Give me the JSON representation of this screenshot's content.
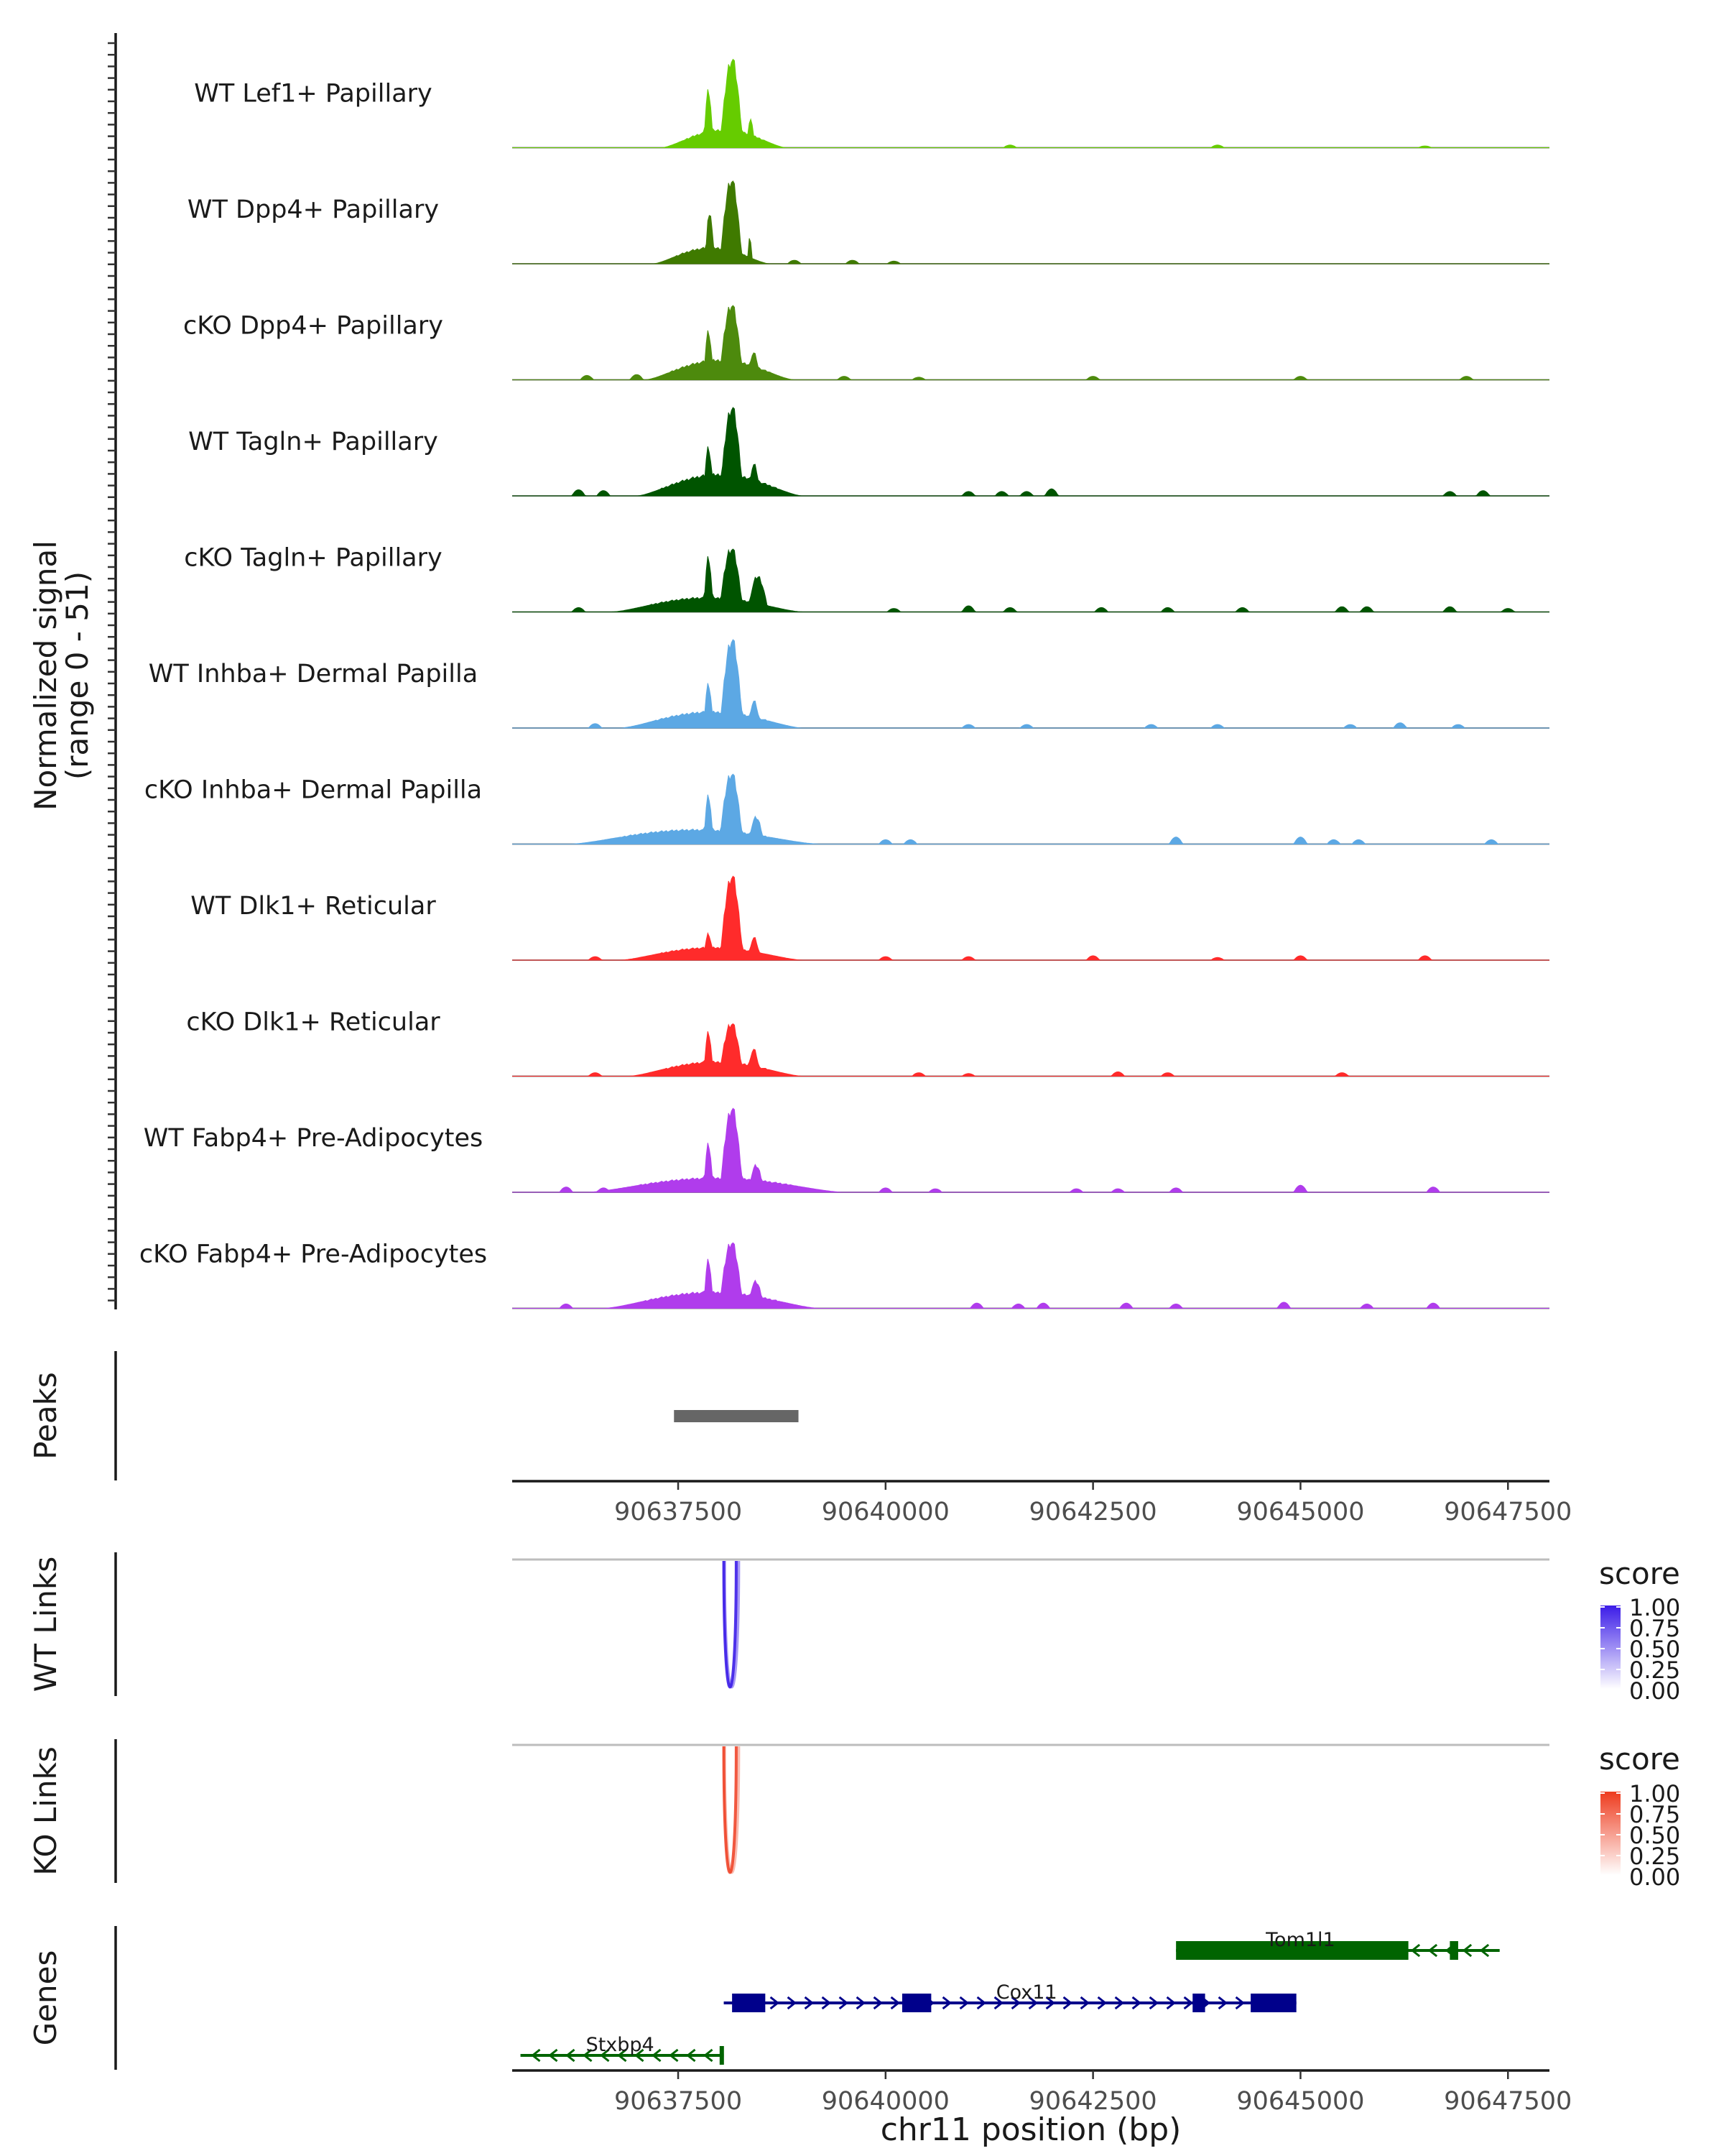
{
  "chart_data": {
    "type": "area",
    "title": "",
    "xlabel": "chr11 position (bp)",
    "ylabel_line1": "Normalized signal",
    "ylabel_line2": "(range 0 - 51)",
    "xlim": [
      90635500,
      90648000
    ],
    "ylim": [
      0,
      51
    ],
    "x_ticks": [
      90637500,
      90640000,
      90642500,
      90645000,
      90647500
    ],
    "x_tick_labels": [
      "90637500",
      "90640000",
      "90642500",
      "90645000",
      "90647500"
    ],
    "tracks": [
      {
        "name": "WT Lef1+ Papillary",
        "color": "#66cc00",
        "peaks": [
          [
            90637300,
            90638800,
            0.2
          ],
          [
            90637800,
            90637930,
            0.65
          ],
          [
            90637990,
            90638300,
            1.0
          ],
          [
            90638330,
            90638420,
            0.35
          ]
        ],
        "small": [
          [
            90641500,
            0.03
          ],
          [
            90644000,
            0.03
          ],
          [
            90646500,
            0.02
          ]
        ]
      },
      {
        "name": "WT Dpp4+ Papillary",
        "color": "#3f7a00",
        "peaks": [
          [
            90637200,
            90638600,
            0.18
          ],
          [
            90637820,
            90637940,
            0.6
          ],
          [
            90637990,
            90638290,
            0.95
          ],
          [
            90638330,
            90638400,
            0.3
          ]
        ],
        "small": [
          [
            90638900,
            0.04
          ],
          [
            90639600,
            0.04
          ],
          [
            90640100,
            0.03
          ]
        ]
      },
      {
        "name": "cKO Dpp4+ Papillary",
        "color": "#4d8a0d",
        "peaks": [
          [
            90637100,
            90638900,
            0.22
          ],
          [
            90637800,
            90637930,
            0.55
          ],
          [
            90637980,
            90638300,
            0.85
          ],
          [
            90638320,
            90638500,
            0.3
          ]
        ],
        "small": [
          [
            90636400,
            0.05
          ],
          [
            90637000,
            0.06
          ],
          [
            90639500,
            0.04
          ],
          [
            90640400,
            0.03
          ],
          [
            90642500,
            0.04
          ],
          [
            90645000,
            0.04
          ],
          [
            90647000,
            0.04
          ]
        ]
      },
      {
        "name": "WT Tagln+ Papillary",
        "color": "#005400",
        "peaks": [
          [
            90637000,
            90639000,
            0.24
          ],
          [
            90637800,
            90637930,
            0.55
          ],
          [
            90637990,
            90638300,
            1.0
          ],
          [
            90638330,
            90638500,
            0.35
          ]
        ],
        "small": [
          [
            90636300,
            0.07
          ],
          [
            90636600,
            0.06
          ],
          [
            90641000,
            0.05
          ],
          [
            90641400,
            0.05
          ],
          [
            90641700,
            0.05
          ],
          [
            90642000,
            0.08
          ],
          [
            90646800,
            0.05
          ],
          [
            90647200,
            0.06
          ]
        ]
      },
      {
        "name": "cKO Tagln+ Papillary",
        "color": "#005400",
        "peaks": [
          [
            90636700,
            90639000,
            0.16
          ],
          [
            90637800,
            90637930,
            0.62
          ],
          [
            90637980,
            90638300,
            0.72
          ],
          [
            90638320,
            90638600,
            0.4
          ]
        ],
        "small": [
          [
            90636300,
            0.05
          ],
          [
            90640100,
            0.04
          ],
          [
            90641000,
            0.07
          ],
          [
            90641500,
            0.05
          ],
          [
            90642600,
            0.05
          ],
          [
            90643400,
            0.05
          ],
          [
            90644300,
            0.05
          ],
          [
            90645500,
            0.06
          ],
          [
            90645800,
            0.06
          ],
          [
            90646800,
            0.06
          ],
          [
            90647500,
            0.04
          ]
        ]
      },
      {
        "name": "WT Inhba+ Dermal Papilla",
        "color": "#5ca8e4",
        "peaks": [
          [
            90636800,
            90639000,
            0.18
          ],
          [
            90637800,
            90637930,
            0.5
          ],
          [
            90637990,
            90638300,
            1.0
          ],
          [
            90638330,
            90638500,
            0.3
          ]
        ],
        "small": [
          [
            90636500,
            0.05
          ],
          [
            90641000,
            0.04
          ],
          [
            90641700,
            0.04
          ],
          [
            90643200,
            0.04
          ],
          [
            90644000,
            0.04
          ],
          [
            90645600,
            0.04
          ],
          [
            90646200,
            0.06
          ],
          [
            90646900,
            0.04
          ]
        ]
      },
      {
        "name": "cKO Inhba+ Dermal Papilla",
        "color": "#5ca8e4",
        "peaks": [
          [
            90636200,
            90639200,
            0.16
          ],
          [
            90637800,
            90637930,
            0.55
          ],
          [
            90637980,
            90638300,
            0.8
          ],
          [
            90638330,
            90638550,
            0.3
          ]
        ],
        "small": [
          [
            90640000,
            0.05
          ],
          [
            90640300,
            0.05
          ],
          [
            90643500,
            0.08
          ],
          [
            90645000,
            0.08
          ],
          [
            90645400,
            0.05
          ],
          [
            90645700,
            0.05
          ],
          [
            90647300,
            0.05
          ]
        ]
      },
      {
        "name": "WT Dlk1+ Reticular",
        "color": "#ff2b2b",
        "peaks": [
          [
            90636800,
            90639000,
            0.14
          ],
          [
            90637800,
            90637930,
            0.3
          ],
          [
            90637990,
            90638300,
            0.95
          ],
          [
            90638330,
            90638500,
            0.25
          ]
        ],
        "small": [
          [
            90636500,
            0.04
          ],
          [
            90640000,
            0.04
          ],
          [
            90641000,
            0.04
          ],
          [
            90642500,
            0.05
          ],
          [
            90644000,
            0.03
          ],
          [
            90645000,
            0.05
          ],
          [
            90646500,
            0.05
          ]
        ]
      },
      {
        "name": "cKO Dlk1+ Reticular",
        "color": "#ff2b2b",
        "peaks": [
          [
            90636900,
            90639000,
            0.16
          ],
          [
            90637800,
            90637930,
            0.5
          ],
          [
            90637980,
            90638300,
            0.6
          ],
          [
            90638320,
            90638500,
            0.3
          ]
        ],
        "small": [
          [
            90636500,
            0.04
          ],
          [
            90640400,
            0.04
          ],
          [
            90641000,
            0.03
          ],
          [
            90642800,
            0.05
          ],
          [
            90643400,
            0.04
          ],
          [
            90645500,
            0.04
          ]
        ]
      },
      {
        "name": "WT Fabp4+ Pre-Adipocytes",
        "color": "#b03cec",
        "peaks": [
          [
            90636400,
            90639500,
            0.16
          ],
          [
            90637800,
            90637930,
            0.55
          ],
          [
            90637990,
            90638300,
            0.95
          ],
          [
            90638330,
            90638550,
            0.3
          ]
        ],
        "small": [
          [
            90636150,
            0.06
          ],
          [
            90636600,
            0.05
          ],
          [
            90640000,
            0.05
          ],
          [
            90640600,
            0.04
          ],
          [
            90642300,
            0.04
          ],
          [
            90642800,
            0.04
          ],
          [
            90643500,
            0.05
          ],
          [
            90645000,
            0.08
          ],
          [
            90646600,
            0.06
          ]
        ]
      },
      {
        "name": "cKO Fabp4+ Pre-Adipocytes",
        "color": "#b03cec",
        "peaks": [
          [
            90636600,
            90639200,
            0.18
          ],
          [
            90637800,
            90637930,
            0.55
          ],
          [
            90637980,
            90638300,
            0.75
          ],
          [
            90638320,
            90638550,
            0.3
          ]
        ],
        "small": [
          [
            90636150,
            0.05
          ],
          [
            90641100,
            0.06
          ],
          [
            90641600,
            0.05
          ],
          [
            90641900,
            0.06
          ],
          [
            90642900,
            0.06
          ],
          [
            90643500,
            0.05
          ],
          [
            90644800,
            0.07
          ],
          [
            90645800,
            0.05
          ],
          [
            90646600,
            0.06
          ]
        ]
      }
    ],
    "peaks_track": {
      "label": "Peaks",
      "regions": [
        [
          90637450,
          90638950
        ]
      ],
      "color": "#666666"
    },
    "links_tracks": [
      {
        "label": "WT Links",
        "legend_title": "score",
        "legend_ticks": [
          "1.00",
          "0.75",
          "0.50",
          "0.25",
          "0.00"
        ],
        "color_high": "#3b1ce8",
        "links": [
          [
            90638050,
            90638200,
            0.9
          ],
          [
            90638060,
            90638230,
            0.45
          ]
        ]
      },
      {
        "label": "KO Links",
        "legend_title": "score",
        "legend_ticks": [
          "1.00",
          "0.75",
          "0.50",
          "0.25",
          "0.00"
        ],
        "color_high": "#ee3b1e",
        "links": [
          [
            90638050,
            90638200,
            0.85
          ],
          [
            90638060,
            90638230,
            0.35
          ]
        ]
      }
    ],
    "genes_track": {
      "label": "Genes",
      "genes": [
        {
          "name": "Tom1l1",
          "strand": "-",
          "start": 90643500,
          "end": 90647400,
          "row": 0,
          "color": "#006400",
          "exons": [
            [
              90643500,
              90646300
            ],
            [
              90646800,
              90646900
            ]
          ]
        },
        {
          "name": "Cox11",
          "strand": "+",
          "start": 90638050,
          "end": 90644950,
          "row": 1,
          "color": "#00008b",
          "exons": [
            [
              90638150,
              90638550
            ],
            [
              90640200,
              90640550
            ],
            [
              90643700,
              90643850
            ],
            [
              90644400,
              90644950
            ]
          ]
        },
        {
          "name": "Stxbp4",
          "strand": "-",
          "start": 90635600,
          "end": 90638050,
          "row": 2,
          "color": "#006400",
          "exons": [
            [
              90638000,
              90638050
            ]
          ]
        }
      ]
    }
  }
}
